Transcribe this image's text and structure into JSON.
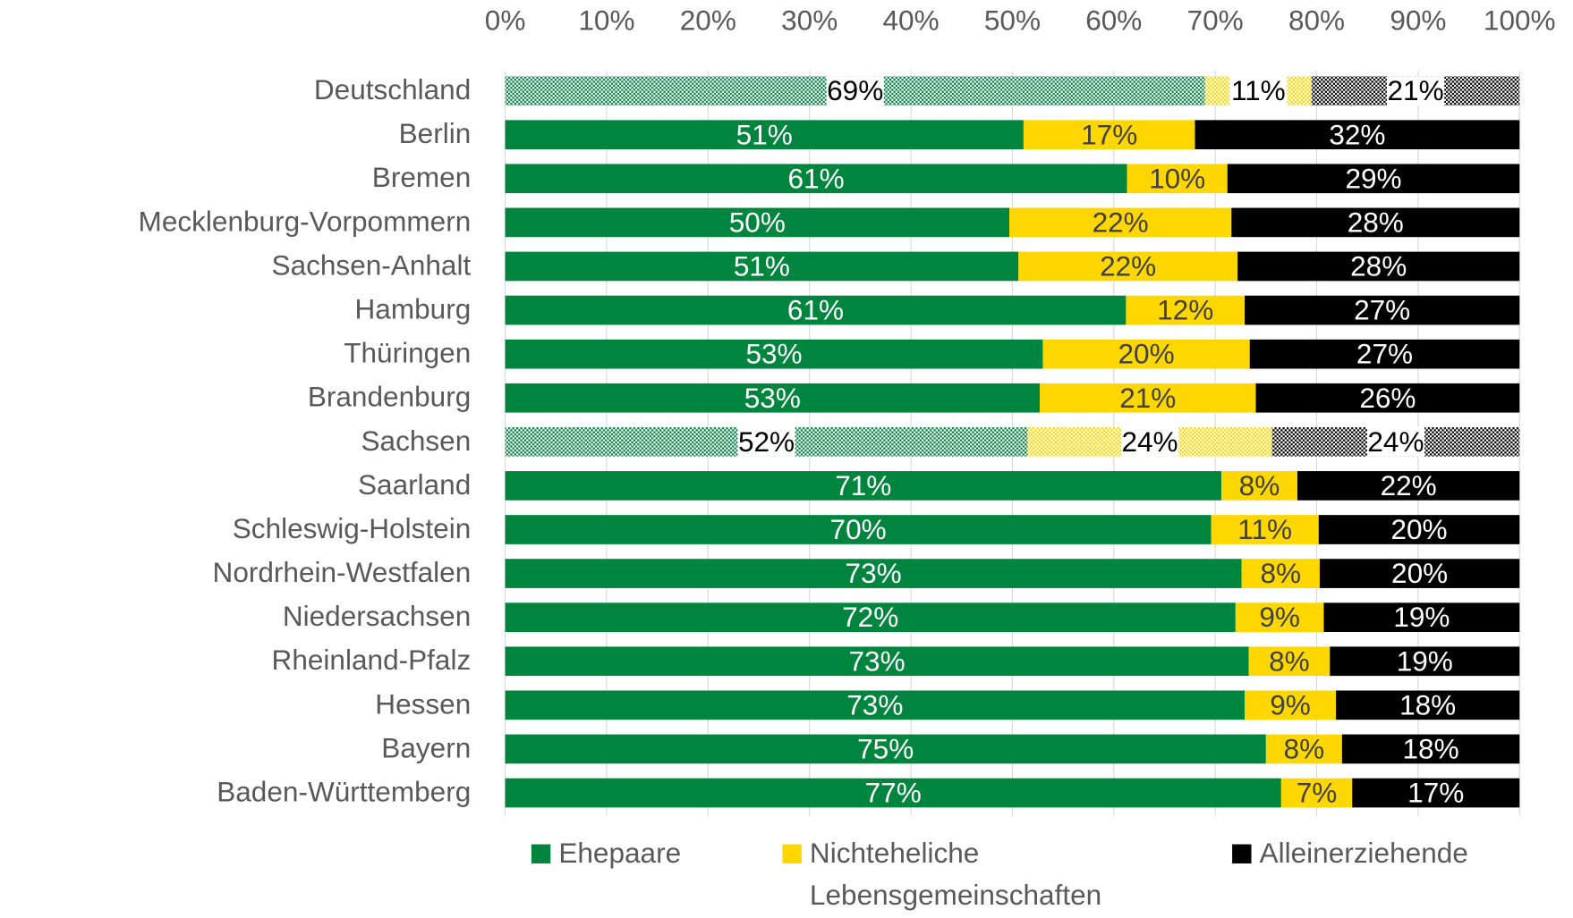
{
  "chart_data": {
    "type": "stacked-barh",
    "categories": [
      "Deutschland",
      "Berlin",
      "Bremen",
      "Mecklenburg-Vorpommern",
      "Sachsen-Anhalt",
      "Hamburg",
      "Thüringen",
      "Brandenburg",
      "Sachsen",
      "Saarland",
      "Schleswig-Holstein",
      "Nordrhein-Westfalen",
      "Niedersachsen",
      "Rheinland-Pfalz",
      "Hessen",
      "Bayern",
      "Baden-Württemberg"
    ],
    "series": [
      {
        "name": "Ehepaare",
        "color": "#00853e",
        "label_color": "#ffffff",
        "values": [
          69,
          51.1,
          61.3,
          49.7,
          50.6,
          61.2,
          53,
          52.7,
          51.5,
          70.6,
          69.6,
          72.6,
          72,
          73.3,
          72.9,
          75,
          76.5
        ],
        "value_labels": [
          "69%",
          "51%",
          "61%",
          "50%",
          "51%",
          "61%",
          "53%",
          "53%",
          "52%",
          "71%",
          "70%",
          "73%",
          "72%",
          "73%",
          "73%",
          "75%",
          "77%"
        ]
      },
      {
        "name": "Nichteheliche Lebensgemeinschaften",
        "color": "#ffd700",
        "label_color": "#404040",
        "values": [
          10.5,
          16.9,
          9.9,
          21.9,
          21.6,
          11.7,
          20.4,
          21.3,
          24.1,
          7.5,
          10.6,
          7.7,
          8.7,
          8,
          9,
          7.5,
          7
        ],
        "value_labels": [
          "11%",
          "17%",
          "10%",
          "22%",
          "22%",
          "12%",
          "20%",
          "21%",
          "24%",
          "8%",
          "11%",
          "8%",
          "9%",
          "8%",
          "9%",
          "8%",
          "7%"
        ]
      },
      {
        "name": "Alleinerziehende",
        "color": "#000000",
        "label_color": "#ffffff",
        "values": [
          20.5,
          32,
          28.8,
          28.4,
          27.8,
          27.1,
          26.6,
          26,
          24.4,
          21.9,
          19.8,
          19.7,
          19.3,
          18.7,
          18.1,
          17.5,
          16.5
        ],
        "value_labels": [
          "21%",
          "32%",
          "29%",
          "28%",
          "28%",
          "27%",
          "27%",
          "26%",
          "24%",
          "22%",
          "20%",
          "20%",
          "19%",
          "19%",
          "18%",
          "18%",
          "17%"
        ]
      }
    ],
    "hatched_rows": [
      0,
      8
    ],
    "xlim": [
      0,
      100
    ],
    "xticks": [
      {
        "value": 0,
        "label": "0%"
      },
      {
        "value": 10,
        "label": "10%"
      },
      {
        "value": 20,
        "label": "20%"
      },
      {
        "value": 30,
        "label": "30%"
      },
      {
        "value": 40,
        "label": "40%"
      },
      {
        "value": 50,
        "label": "50%"
      },
      {
        "value": 60,
        "label": "60%"
      },
      {
        "value": 70,
        "label": "70%"
      },
      {
        "value": 80,
        "label": "80%"
      },
      {
        "value": 90,
        "label": "90%"
      },
      {
        "value": 100,
        "label": "100%"
      }
    ],
    "grid": true
  }
}
